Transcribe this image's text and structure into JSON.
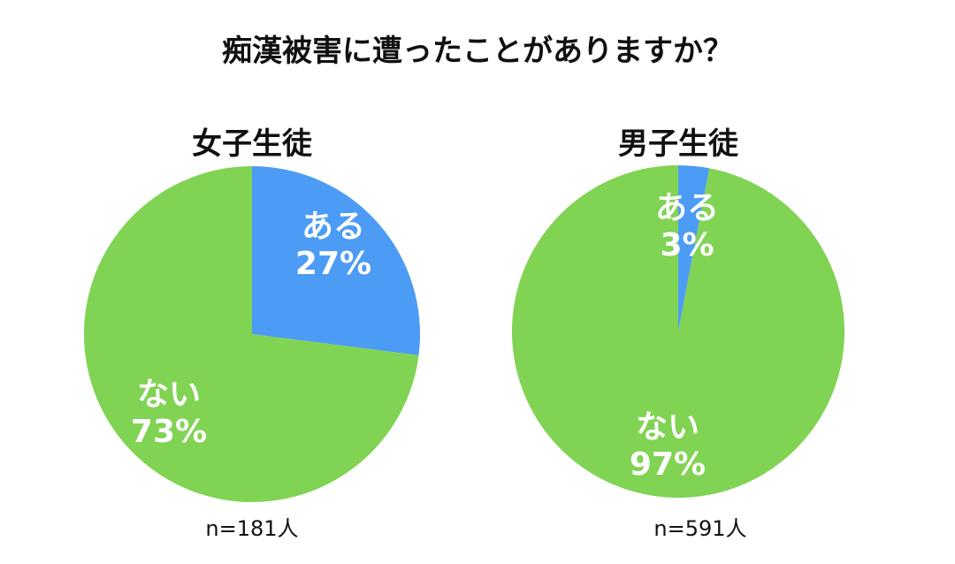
{
  "title": "痴漢被害に遭ったことがありますか？",
  "colors": {
    "yes": "#4C9BF5",
    "no": "#80D353"
  },
  "chart_data": [
    {
      "type": "pie",
      "title": "女子生徒",
      "n_label": "n=181人",
      "slices": [
        {
          "label": "ある",
          "value": 27,
          "value_label": "27%",
          "color": "#4C9BF5"
        },
        {
          "label": "ない",
          "value": 73,
          "value_label": "73%",
          "color": "#80D353"
        }
      ]
    },
    {
      "type": "pie",
      "title": "男子生徒",
      "n_label": "n=591人",
      "slices": [
        {
          "label": "ある",
          "value": 3,
          "value_label": "3%",
          "color": "#4C9BF5"
        },
        {
          "label": "ない",
          "value": 97,
          "value_label": "97%",
          "color": "#80D353"
        }
      ]
    }
  ]
}
